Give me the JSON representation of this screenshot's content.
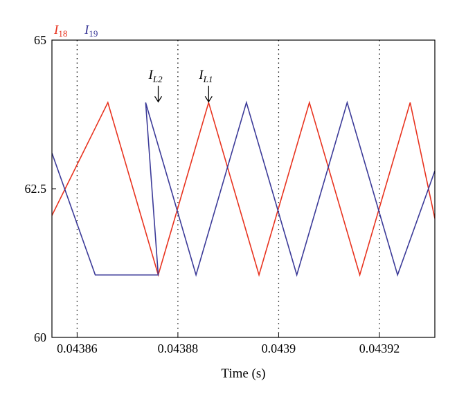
{
  "chart_data": {
    "type": "line",
    "xlabel": "Time (s)",
    "ylabel": "",
    "xlim": [
      0.043855,
      0.043931
    ],
    "ylim": [
      60,
      65
    ],
    "x_ticks": [
      0.04386,
      0.04388,
      0.0439,
      0.04392
    ],
    "x_tick_labels": [
      "0.04386",
      "0.04388",
      "0.0439",
      "0.04392"
    ],
    "y_ticks": [
      60,
      62.5,
      65
    ],
    "y_tick_labels": [
      "60",
      "62.5",
      "65"
    ],
    "vertical_dotted_lines": [
      0.04386,
      0.04388,
      0.0439,
      0.04392
    ],
    "grid": false,
    "legend_position": "top-left",
    "series": [
      {
        "name": "I18",
        "name_main": "I",
        "name_sub": "18",
        "color": "#e8321e",
        "x": [
          0.043855,
          0.0438661,
          0.0438761,
          0.0438861,
          0.0438961,
          0.0439061,
          0.0439161,
          0.0439261,
          0.043931
        ],
        "y": [
          62.05,
          63.95,
          61.05,
          63.95,
          61.05,
          63.95,
          61.05,
          63.95,
          62.0
        ]
      },
      {
        "name": "I19",
        "name_main": "I",
        "name_sub": "19",
        "color": "#3b3a98",
        "x": [
          0.043855,
          0.0438636,
          0.0438761,
          0.0438736,
          0.0438836,
          0.0438936,
          0.0439036,
          0.0439136,
          0.0439236,
          0.043931
        ],
        "y": [
          63.1,
          61.05,
          61.05,
          63.95,
          61.05,
          63.95,
          61.05,
          63.95,
          61.05,
          62.8
        ]
      }
    ],
    "annotations": [
      {
        "main": "I",
        "sub": "L2",
        "x": 0.0438761,
        "y": 63.95
      },
      {
        "main": "I",
        "sub": "L1",
        "x": 0.0438861,
        "y": 63.95
      }
    ]
  }
}
